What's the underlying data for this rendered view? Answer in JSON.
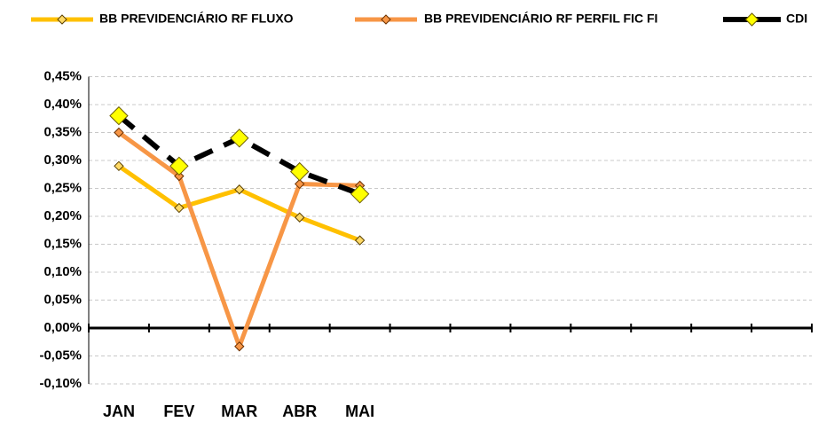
{
  "chart_data": {
    "type": "line",
    "categories": [
      "JAN",
      "FEV",
      "MAR",
      "ABR",
      "MAI",
      null,
      null,
      null,
      null,
      null,
      null,
      null
    ],
    "series": [
      {
        "name": "BB PREVIDENCIÁRIO RF FLUXO",
        "color": "#FFC000",
        "values": [
          0.29,
          0.215,
          0.248,
          0.198,
          0.157,
          null,
          null,
          null,
          null,
          null,
          null,
          null
        ]
      },
      {
        "name": "BB PREVIDENCIÁRIO RF PERFIL FIC FI",
        "color": "#F79646",
        "values": [
          0.35,
          0.272,
          -0.033,
          0.258,
          0.255,
          null,
          null,
          null,
          null,
          null,
          null,
          null
        ]
      },
      {
        "name": "CDI",
        "color": "#000000",
        "marker_color": "#FFFF00",
        "values": [
          0.38,
          0.29,
          0.34,
          0.28,
          0.24,
          null,
          null,
          null,
          null,
          null,
          null,
          null
        ]
      }
    ],
    "ylim": [
      -0.1,
      0.45
    ],
    "yticks": [
      {
        "value": -0.1,
        "label": "-0,10%"
      },
      {
        "value": -0.05,
        "label": "-0,05%"
      },
      {
        "value": 0,
        "label": "0,00%"
      },
      {
        "value": 0.05,
        "label": "0,05%"
      },
      {
        "value": 0.1,
        "label": "0,10%"
      },
      {
        "value": 0.15,
        "label": "0,15%"
      },
      {
        "value": 0.2,
        "label": "0,20%"
      },
      {
        "value": 0.25,
        "label": "0,25%"
      },
      {
        "value": 0.3,
        "label": "0,30%"
      },
      {
        "value": 0.35,
        "label": "0,35%"
      },
      {
        "value": 0.4,
        "label": "0,40%"
      },
      {
        "value": 0.45,
        "label": "0,45%"
      }
    ],
    "grid": true
  }
}
